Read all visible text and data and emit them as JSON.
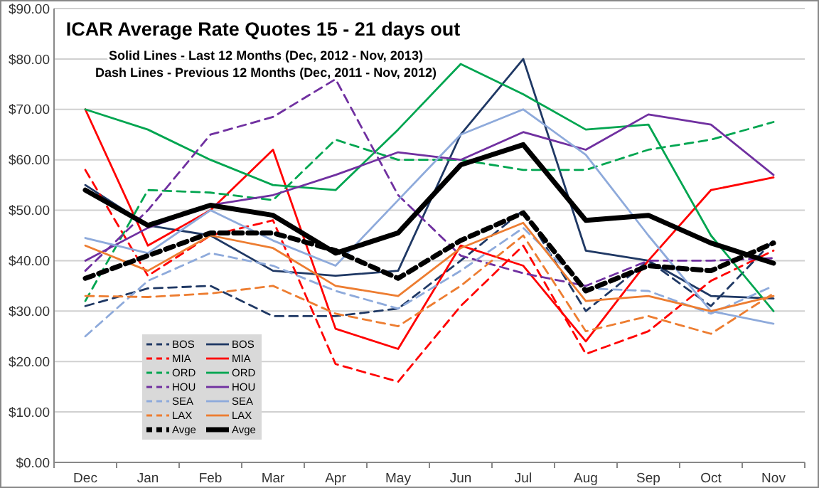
{
  "chart_data": {
    "type": "line",
    "title": "ICAR Average Rate  Quotes 15 - 21 days out",
    "subtitle": "Solid Lines - Last 12 Months (Dec, 2012 - Nov, 2013)\nDash Lines - Previous 12 Months (Dec, 2011 - Nov, 2012)",
    "categories": [
      "Dec",
      "Jan",
      "Feb",
      "Mar",
      "Apr",
      "May",
      "Jun",
      "Jul",
      "Aug",
      "Sep",
      "Oct",
      "Nov"
    ],
    "ylim": [
      0,
      90
    ],
    "yticks": [
      {
        "value": 0,
        "label": "$0.00"
      },
      {
        "value": 10,
        "label": "$10.00"
      },
      {
        "value": 20,
        "label": "$20.00"
      },
      {
        "value": 30,
        "label": "$30.00"
      },
      {
        "value": 40,
        "label": "$40.00"
      },
      {
        "value": 50,
        "label": "$50.00"
      },
      {
        "value": 60,
        "label": "$60.00"
      },
      {
        "value": 70,
        "label": "$70.00"
      },
      {
        "value": 80,
        "label": "$80.00"
      },
      {
        "value": 90,
        "label": "$90.00"
      }
    ],
    "grid": "y",
    "legend": "bottom left",
    "marker": "none",
    "series": [
      {
        "name": "BOS",
        "color": "#1f3864",
        "line_style": "dashed",
        "values": [
          31,
          34.5,
          35,
          29,
          29,
          30.5,
          40,
          50,
          30,
          40,
          31,
          44
        ]
      },
      {
        "name": "BOS",
        "color": "#1f3864",
        "line_style": "solid",
        "values": [
          55,
          47,
          45,
          38,
          37,
          38,
          65,
          80,
          42,
          40,
          33,
          32.5
        ]
      },
      {
        "name": "MIA",
        "color": "#ff0000",
        "line_style": "dashed",
        "values": [
          58,
          37,
          45,
          48,
          19.5,
          16,
          31,
          43,
          21.5,
          26,
          36,
          42
        ]
      },
      {
        "name": "MIA",
        "color": "#ff0000",
        "line_style": "solid",
        "values": [
          70,
          43,
          50,
          62,
          26.5,
          22.5,
          43,
          39,
          24,
          40,
          54,
          56.5
        ]
      },
      {
        "name": "ORD",
        "color": "#00a550",
        "line_style": "dashed",
        "values": [
          32,
          54,
          53.5,
          52,
          64,
          60,
          60,
          58,
          58,
          62,
          64,
          67.5
        ]
      },
      {
        "name": "ORD",
        "color": "#00a550",
        "line_style": "solid",
        "values": [
          70,
          66,
          60,
          55,
          54,
          66,
          79,
          73,
          66,
          67,
          45,
          30
        ]
      },
      {
        "name": "HOU",
        "color": "#7030a0",
        "line_style": "dashed",
        "values": [
          38,
          50,
          65,
          68.5,
          76,
          53,
          41,
          37.5,
          35,
          40,
          40,
          40.5
        ]
      },
      {
        "name": "HOU",
        "color": "#7030a0",
        "line_style": "solid",
        "values": [
          40,
          46.5,
          51,
          53,
          57,
          61.5,
          60,
          65.5,
          62,
          69,
          67,
          57
        ]
      },
      {
        "name": "SEA",
        "color": "#8eaadb",
        "line_style": "dashed",
        "values": [
          25,
          36,
          41.5,
          39,
          34,
          30.5,
          38,
          46.5,
          34.5,
          34,
          29.5,
          35
        ]
      },
      {
        "name": "SEA",
        "color": "#8eaadb",
        "line_style": "solid",
        "values": [
          44.5,
          41.5,
          50,
          44,
          39,
          52,
          65,
          70,
          61,
          45,
          30,
          27.5
        ]
      },
      {
        "name": "LAX",
        "color": "#ed7d31",
        "line_style": "dashed",
        "values": [
          33,
          32.8,
          33.5,
          35,
          29.5,
          27,
          35,
          45,
          26,
          29,
          25.5,
          33.5
        ]
      },
      {
        "name": "LAX",
        "color": "#ed7d31",
        "line_style": "solid",
        "values": [
          43,
          38,
          45,
          42.5,
          35,
          33,
          42.5,
          47.5,
          32,
          33,
          30,
          33
        ]
      },
      {
        "name": "Avge",
        "color": "#000000",
        "line_style": "dashed",
        "values": [
          36.5,
          41,
          45.5,
          45.5,
          42,
          36.5,
          44,
          49.5,
          34,
          39,
          38,
          43.5
        ]
      },
      {
        "name": "Avge",
        "color": "#000000",
        "line_style": "solid",
        "values": [
          54,
          47,
          51,
          49,
          41.5,
          45.5,
          59,
          63,
          48,
          49,
          43.5,
          39.5
        ]
      }
    ]
  }
}
